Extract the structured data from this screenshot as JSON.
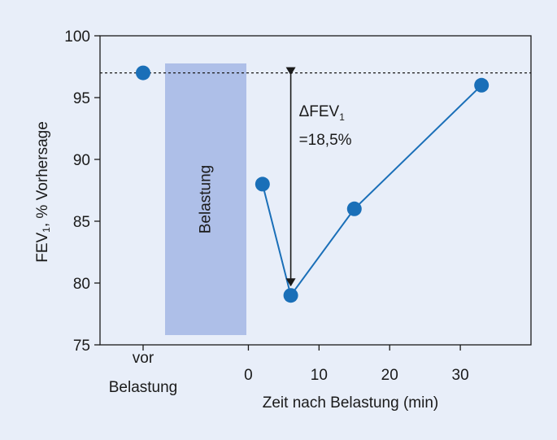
{
  "chart_data": {
    "type": "line",
    "xlabel": "Zeit nach Belastung (min)",
    "ylabel_main": "FEV",
    "ylabel_sub": "1",
    "ylabel_rest": ", % Vorhersage",
    "ylim": [
      75,
      100
    ],
    "yticks": [
      75,
      80,
      85,
      90,
      95,
      100
    ],
    "xlim": [
      -21,
      40
    ],
    "xticks": [
      0,
      10,
      20,
      30
    ],
    "pre_label_line1": "vor",
    "pre_label_line2": "Belastung",
    "baseline_value": 97,
    "exercise_label": "Belastung",
    "exercise_bar_color": "#aebfe8",
    "series_color": "#1a6fb8",
    "pre_point": {
      "label": "vor Belastung",
      "y": 97
    },
    "series": [
      {
        "points": [
          {
            "x": 2,
            "y": 88
          },
          {
            "x": 6,
            "y": 79
          },
          {
            "x": 15,
            "y": 86
          },
          {
            "x": 33,
            "y": 96
          }
        ]
      }
    ],
    "annotation": {
      "line1_main": "ΔFEV",
      "line1_sub": "1",
      "line2": "=18,5%"
    }
  }
}
